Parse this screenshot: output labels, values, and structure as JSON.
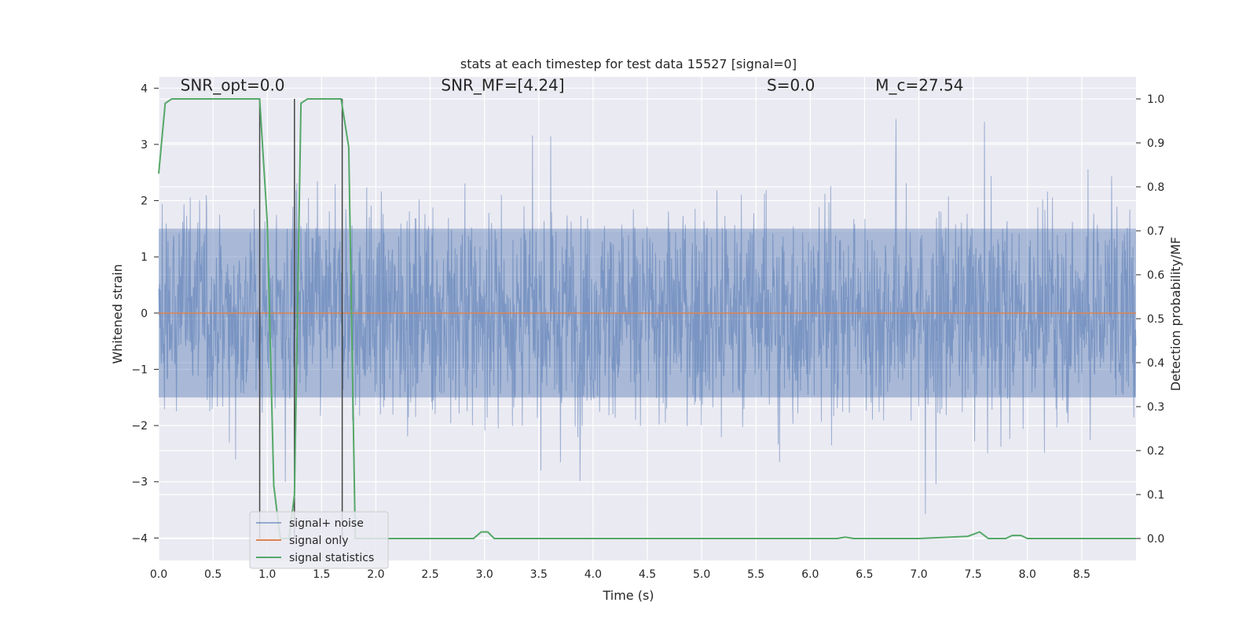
{
  "chart_data": {
    "type": "line",
    "title": "stats at each timestep for test data 15527 [signal=0]",
    "xlabel": "Time (s)",
    "ylabel": "Whitened strain",
    "ylabel_right": "Detection probability/MF",
    "xlim": [
      0.0,
      9.0
    ],
    "ylim": [
      -4.4,
      4.2
    ],
    "ylim_right": [
      -0.05,
      1.05
    ],
    "x_ticks": [
      0.0,
      0.5,
      1.0,
      1.5,
      2.0,
      2.5,
      3.0,
      3.5,
      4.0,
      4.5,
      5.0,
      5.5,
      6.0,
      6.5,
      7.0,
      7.5,
      8.0,
      8.5
    ],
    "x_tick_labels": [
      "0.0",
      "0.5",
      "1.0",
      "1.5",
      "2.0",
      "2.5",
      "3.0",
      "3.5",
      "4.0",
      "4.5",
      "5.0",
      "5.5",
      "6.0",
      "6.5",
      "7.0",
      "7.5",
      "8.0",
      "8.5"
    ],
    "y_ticks": [
      -4,
      -3,
      -2,
      -1,
      0,
      1,
      2,
      3,
      4
    ],
    "y_tick_labels": [
      "−4",
      "−3",
      "−2",
      "−1",
      "0",
      "1",
      "2",
      "3",
      "4"
    ],
    "y_right_ticks": [
      0.0,
      0.1,
      0.2,
      0.3,
      0.4,
      0.5,
      0.6,
      0.7,
      0.8,
      0.9,
      1.0
    ],
    "y_right_tick_labels": [
      "0.0",
      "0.1",
      "0.2",
      "0.3",
      "0.4",
      "0.5",
      "0.6",
      "0.7",
      "0.8",
      "0.9",
      "1.0"
    ],
    "grid": true,
    "legend_position": "lower-left",
    "annotations": [
      {
        "text": "SNR_opt=0.0",
        "x": 0.2,
        "y": 4.0
      },
      {
        "text": "SNR_MF=[4.24]",
        "x": 2.6,
        "y": 4.0
      },
      {
        "text": "S=0.0",
        "x": 5.6,
        "y": 4.0
      },
      {
        "text": "M_c=27.54",
        "x": 6.6,
        "y": 4.0
      }
    ],
    "series": [
      {
        "name": "signal+ noise",
        "axis": "left",
        "color": "#4c72b0",
        "alpha": 0.5,
        "description_values": "white-noise strain, roughly ±2 sigma with peaks to ±4",
        "amplitude_envelope": [
          2.1,
          2.0,
          3.9,
          2.2,
          2.3,
          2.2,
          3.2,
          2.1,
          2.0,
          2.3,
          3.0,
          3.5,
          3.9,
          3.5,
          2.6,
          3.0
        ]
      },
      {
        "name": "signal only",
        "axis": "left",
        "color": "#dd8452",
        "x": [
          0.0,
          9.0
        ],
        "y": [
          0.0,
          0.0
        ]
      },
      {
        "name": "signal statistics",
        "axis": "right",
        "color": "#55a868",
        "x": [
          0.0,
          0.06,
          0.12,
          0.2,
          0.4,
          0.6,
          0.8,
          0.93,
          1.0,
          1.06,
          1.12,
          1.2,
          1.25,
          1.31,
          1.37,
          1.45,
          1.6,
          1.68,
          1.75,
          1.81,
          1.87,
          2.0,
          2.9,
          2.97,
          3.03,
          3.09,
          4.0,
          5.0,
          6.0,
          6.25,
          6.32,
          6.4,
          7.0,
          7.45,
          7.56,
          7.64,
          7.8,
          7.86,
          7.94,
          8.0,
          8.1,
          8.5,
          9.0
        ],
        "y": [
          0.83,
          0.99,
          1.0,
          1.0,
          1.0,
          1.0,
          1.0,
          1.0,
          0.72,
          0.12,
          0.0,
          0.0,
          0.1,
          0.99,
          1.0,
          1.0,
          1.0,
          1.0,
          0.89,
          0.0,
          0.0,
          0.0,
          0.0,
          0.015,
          0.015,
          0.0,
          0.0,
          0.0,
          0.0,
          0.0,
          0.003,
          0.0,
          0.0,
          0.005,
          0.015,
          0.0,
          0.0,
          0.007,
          0.007,
          0.0,
          0.0,
          0.0,
          0.0
        ]
      }
    ],
    "vertical_lines": [
      {
        "x": 0.93,
        "color": "#444444"
      },
      {
        "x": 1.25,
        "color": "#444444"
      },
      {
        "x": 1.69,
        "color": "#444444"
      }
    ]
  }
}
